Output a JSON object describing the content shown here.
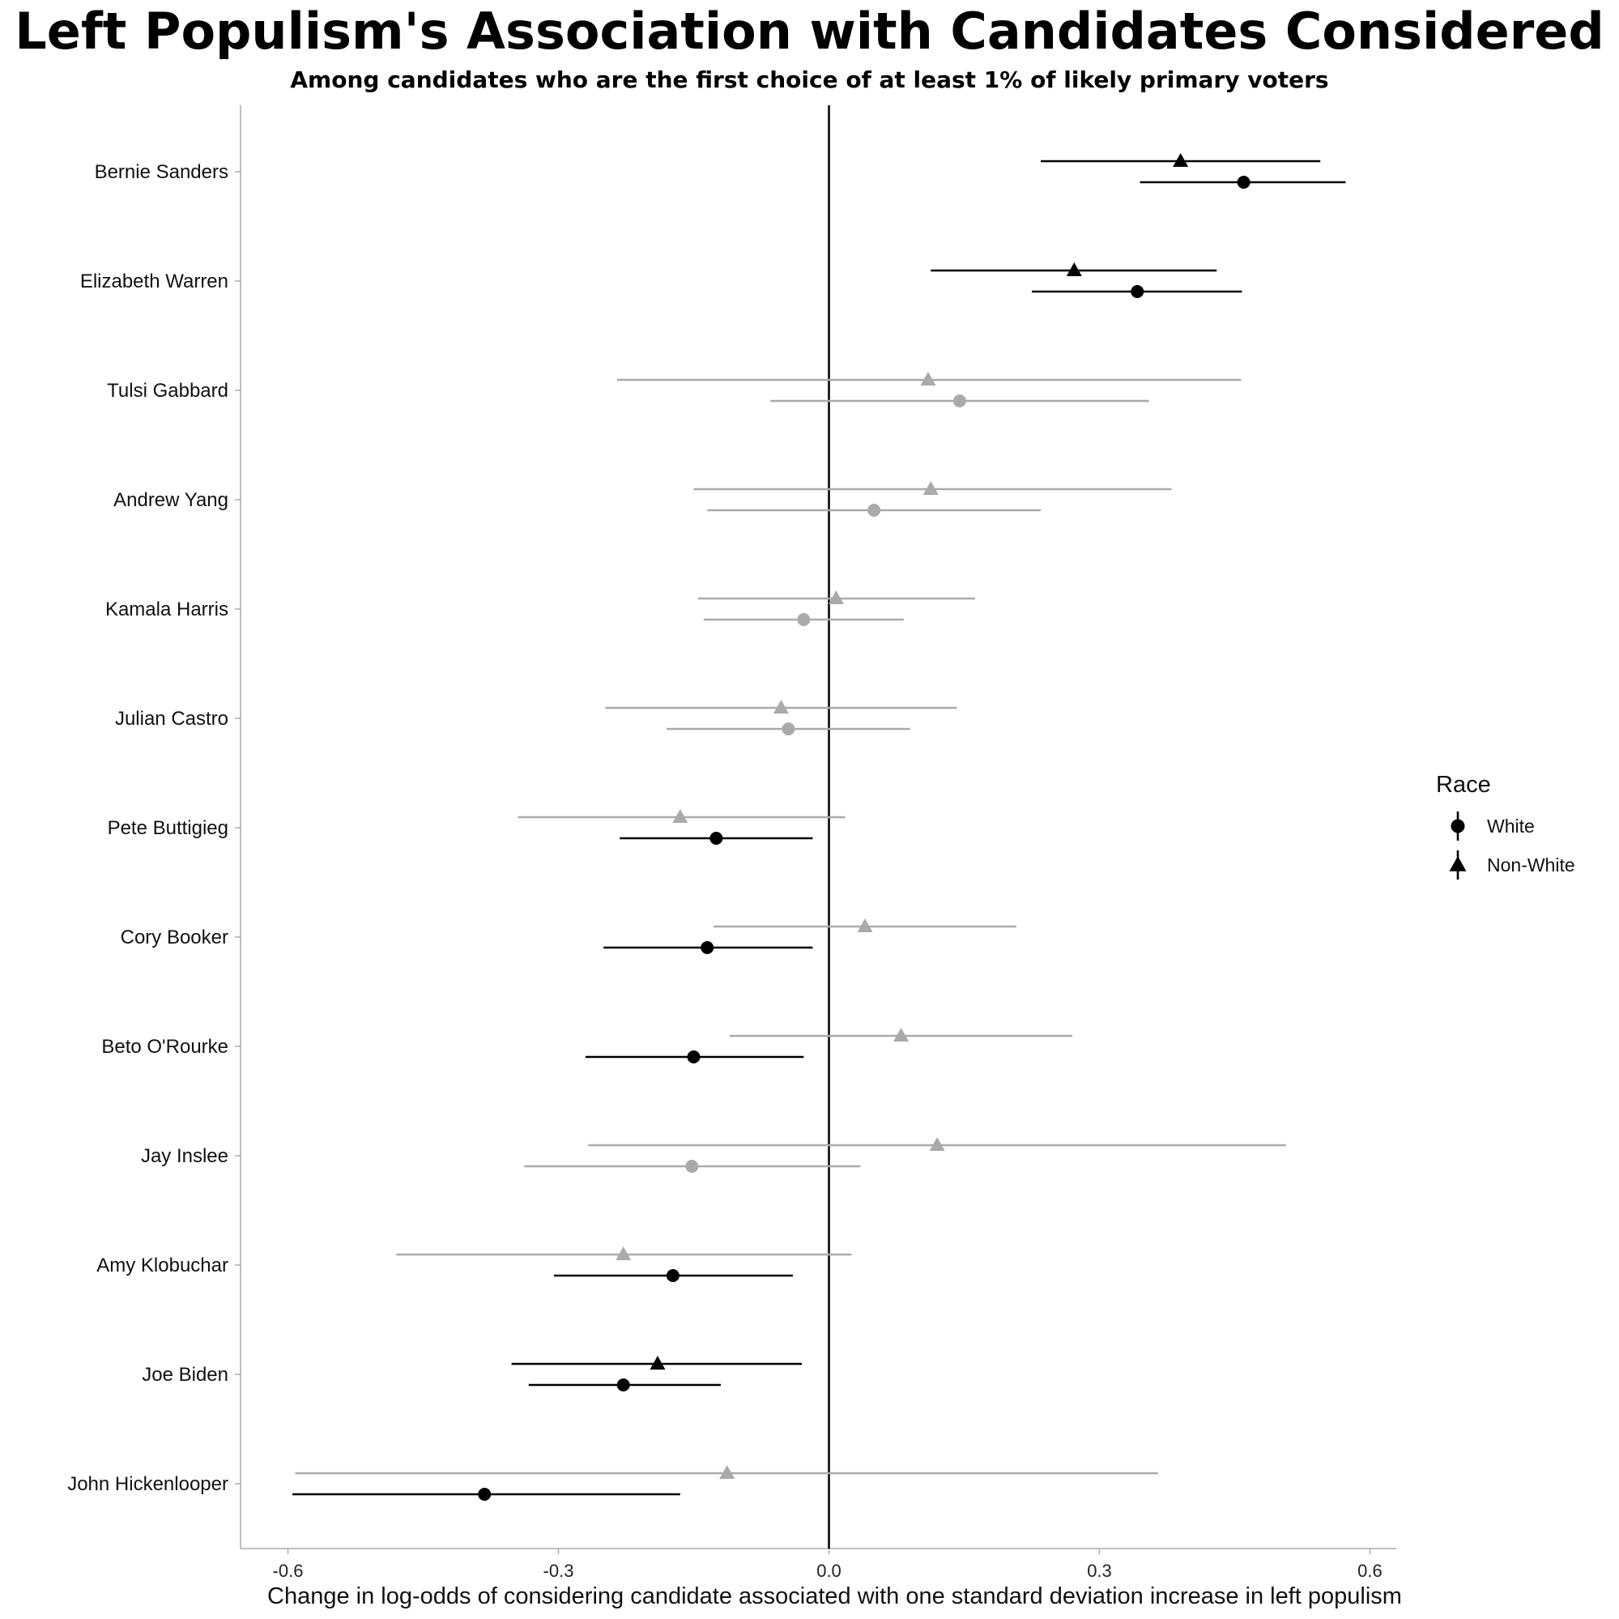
{
  "chart_data": {
    "type": "scatter",
    "subtype": "coefficient-plot-with-error-bars",
    "title": "Left Populism's Association with Candidates Considered",
    "subtitle": "Among candidates who are the first choice of at least 1% of likely primary voters",
    "xlabel": "Change in log-odds of considering candidate associated with one standard deviation increase in left populism",
    "ylabel": "",
    "xlim": [
      -0.655,
      0.63
    ],
    "xticks": [
      -0.6,
      -0.3,
      0.0,
      0.3,
      0.6
    ],
    "xtick_labels": [
      "-0.6",
      "-0.3",
      "0.0",
      "0.3",
      "0.6"
    ],
    "reference_line_x": 0.0,
    "grid": false,
    "legend": {
      "title": "Race",
      "placement": "right",
      "entries": [
        {
          "name": "White",
          "marker": "circle"
        },
        {
          "name": "Non-White",
          "marker": "triangle"
        }
      ]
    },
    "colors": {
      "significant": "#000000",
      "not_significant": "#aaaaaa"
    },
    "candidates": [
      "Bernie Sanders",
      "Elizabeth Warren",
      "Tulsi Gabbard",
      "Andrew Yang",
      "Kamala Harris",
      "Julian Castro",
      "Pete Buttigieg",
      "Cory Booker",
      "Beto O'Rourke",
      "Jay Inslee",
      "Amy Klobuchar",
      "Joe Biden",
      "John Hickenlooper"
    ],
    "series": [
      {
        "name": "White",
        "marker": "circle",
        "points": [
          {
            "estimate": 0.46,
            "lower": 0.345,
            "upper": 0.573,
            "significant": true
          },
          {
            "estimate": 0.342,
            "lower": 0.225,
            "upper": 0.458,
            "significant": true
          },
          {
            "estimate": 0.145,
            "lower": -0.065,
            "upper": 0.355,
            "significant": false
          },
          {
            "estimate": 0.05,
            "lower": -0.135,
            "upper": 0.235,
            "significant": false
          },
          {
            "estimate": -0.028,
            "lower": -0.139,
            "upper": 0.083,
            "significant": false
          },
          {
            "estimate": -0.045,
            "lower": -0.18,
            "upper": 0.09,
            "significant": false
          },
          {
            "estimate": -0.125,
            "lower": -0.232,
            "upper": -0.018,
            "significant": true
          },
          {
            "estimate": -0.135,
            "lower": -0.25,
            "upper": -0.018,
            "significant": true
          },
          {
            "estimate": -0.15,
            "lower": -0.27,
            "upper": -0.028,
            "significant": true
          },
          {
            "estimate": -0.152,
            "lower": -0.338,
            "upper": 0.035,
            "significant": false
          },
          {
            "estimate": -0.173,
            "lower": -0.305,
            "upper": -0.04,
            "significant": true
          },
          {
            "estimate": -0.228,
            "lower": -0.333,
            "upper": -0.12,
            "significant": true
          },
          {
            "estimate": -0.382,
            "lower": -0.595,
            "upper": -0.165,
            "significant": true
          }
        ]
      },
      {
        "name": "Non-White",
        "marker": "triangle",
        "points": [
          {
            "estimate": 0.39,
            "lower": 0.235,
            "upper": 0.545,
            "significant": true
          },
          {
            "estimate": 0.272,
            "lower": 0.113,
            "upper": 0.43,
            "significant": true
          },
          {
            "estimate": 0.11,
            "lower": -0.235,
            "upper": 0.457,
            "significant": false
          },
          {
            "estimate": 0.113,
            "lower": -0.15,
            "upper": 0.38,
            "significant": false
          },
          {
            "estimate": 0.008,
            "lower": -0.145,
            "upper": 0.162,
            "significant": false
          },
          {
            "estimate": -0.053,
            "lower": -0.248,
            "upper": 0.142,
            "significant": false
          },
          {
            "estimate": -0.165,
            "lower": -0.345,
            "upper": 0.018,
            "significant": false
          },
          {
            "estimate": 0.04,
            "lower": -0.128,
            "upper": 0.208,
            "significant": false
          },
          {
            "estimate": 0.08,
            "lower": -0.11,
            "upper": 0.27,
            "significant": false
          },
          {
            "estimate": 0.12,
            "lower": -0.267,
            "upper": 0.507,
            "significant": false
          },
          {
            "estimate": -0.228,
            "lower": -0.48,
            "upper": 0.025,
            "significant": false
          },
          {
            "estimate": -0.19,
            "lower": -0.352,
            "upper": -0.03,
            "significant": true
          },
          {
            "estimate": -0.113,
            "lower": -0.592,
            "upper": 0.365,
            "significant": false
          }
        ]
      }
    ]
  }
}
